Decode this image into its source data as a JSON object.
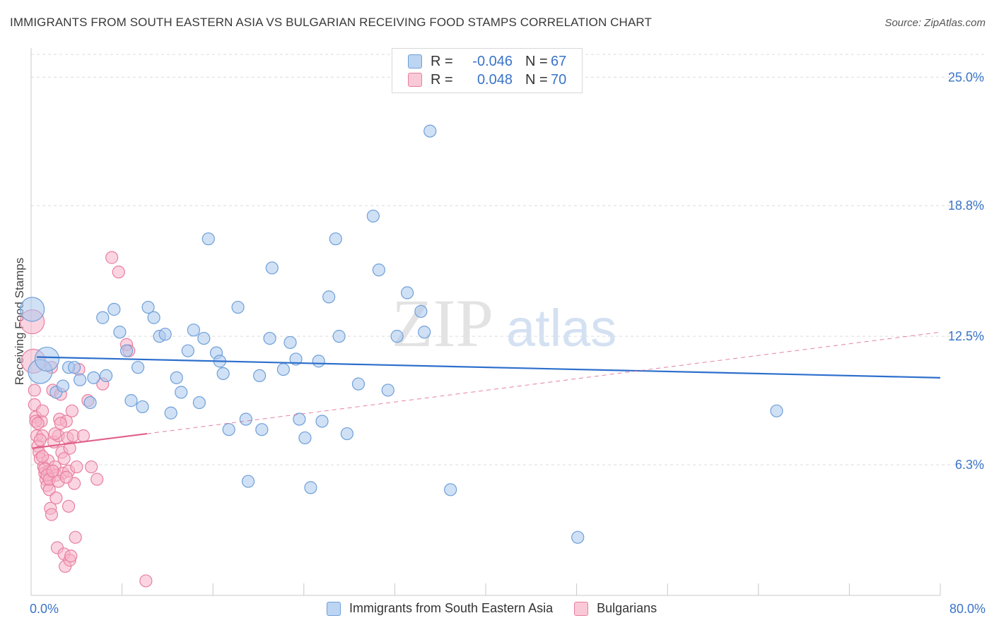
{
  "header": {
    "title": "IMMIGRANTS FROM SOUTH EASTERN ASIA VS BULGARIAN RECEIVING FOOD STAMPS CORRELATION CHART",
    "source": "Source: ZipAtlas.com"
  },
  "watermark": {
    "zip": "ZIP",
    "atlas": "atlas"
  },
  "legend_top": {
    "rows": [
      {
        "r_label": "R =",
        "r_value": "-0.046",
        "n_label": "N =",
        "n_value": "67"
      },
      {
        "r_label": "R =",
        "r_value": "0.048",
        "n_label": "N =",
        "n_value": "70"
      }
    ]
  },
  "colors": {
    "blue_fill": "#a9c8ef",
    "blue_stroke": "#6f9fd8",
    "blue_line": "#2d6fcc",
    "pink_fill": "#f5b3c8",
    "pink_stroke": "#e87fa0",
    "pink_line": "#e0608a",
    "tick_text": "#3a74c8",
    "grid": "#dcdcdc"
  },
  "chart_data": {
    "type": "scatter",
    "title": "IMMIGRANTS FROM SOUTH EASTERN ASIA VS BULGARIAN RECEIVING FOOD STAMPS CORRELATION CHART",
    "xlabel": "",
    "ylabel": "Receiving Food Stamps",
    "xlim": [
      0,
      80
    ],
    "ylim": [
      0,
      26.1
    ],
    "x_tick_labels": [
      "0.0%",
      "80.0%"
    ],
    "y_ticks": [
      6.3,
      12.5,
      18.8,
      25.0
    ],
    "y_tick_labels": [
      "6.3%",
      "12.5%",
      "18.8%",
      "25.0%"
    ],
    "grid": true,
    "legend_position": "bottom",
    "series": [
      {
        "name": "Immigrants from South Eastern Asia",
        "color": "blue",
        "r": -0.046,
        "n": 67,
        "trend": {
          "x": [
            0.5,
            80
          ],
          "y": [
            11.5,
            10.5
          ],
          "style": "solid"
        },
        "points": [
          [
            0.1,
            13.8,
            "large"
          ],
          [
            0.8,
            10.8,
            "large"
          ],
          [
            1.4,
            11.4,
            "large"
          ],
          [
            2.2,
            9.8
          ],
          [
            2.8,
            10.1
          ],
          [
            3.3,
            11.0
          ],
          [
            3.8,
            11.0
          ],
          [
            4.3,
            10.4
          ],
          [
            5.2,
            9.3
          ],
          [
            5.5,
            10.5
          ],
          [
            6.3,
            13.4
          ],
          [
            6.6,
            10.6
          ],
          [
            7.3,
            13.8
          ],
          [
            7.8,
            12.7
          ],
          [
            8.4,
            11.8
          ],
          [
            8.8,
            9.4
          ],
          [
            9.4,
            11.0
          ],
          [
            9.8,
            9.1
          ],
          [
            10.3,
            13.9
          ],
          [
            10.8,
            13.4
          ],
          [
            11.3,
            12.5
          ],
          [
            11.8,
            12.6
          ],
          [
            12.3,
            8.8
          ],
          [
            12.8,
            10.5
          ],
          [
            13.2,
            9.8
          ],
          [
            13.8,
            11.8
          ],
          [
            14.3,
            12.8
          ],
          [
            14.8,
            9.3
          ],
          [
            15.2,
            12.4
          ],
          [
            15.6,
            17.2
          ],
          [
            16.3,
            11.7
          ],
          [
            16.6,
            11.3
          ],
          [
            16.9,
            10.7
          ],
          [
            17.4,
            8.0
          ],
          [
            18.2,
            13.9
          ],
          [
            18.9,
            8.5
          ],
          [
            19.1,
            5.5
          ],
          [
            20.1,
            10.6
          ],
          [
            20.3,
            8.0
          ],
          [
            21.0,
            12.4
          ],
          [
            21.2,
            15.8
          ],
          [
            22.2,
            10.9
          ],
          [
            22.8,
            12.2
          ],
          [
            23.3,
            11.4
          ],
          [
            23.6,
            8.5
          ],
          [
            24.1,
            7.6
          ],
          [
            24.6,
            5.2
          ],
          [
            25.3,
            11.3
          ],
          [
            25.6,
            8.4
          ],
          [
            26.2,
            14.4
          ],
          [
            26.8,
            17.2
          ],
          [
            27.1,
            12.5
          ],
          [
            27.8,
            7.8
          ],
          [
            28.8,
            10.2
          ],
          [
            30.1,
            18.3
          ],
          [
            30.6,
            15.7
          ],
          [
            31.4,
            9.9
          ],
          [
            32.2,
            12.5
          ],
          [
            33.1,
            14.6
          ],
          [
            34.3,
            13.7
          ],
          [
            34.6,
            12.7
          ],
          [
            35.1,
            22.4
          ],
          [
            36.9,
            5.1
          ],
          [
            48.1,
            2.8
          ],
          [
            65.6,
            8.9
          ]
        ]
      },
      {
        "name": "Bulgarians",
        "color": "pink",
        "r": 0.048,
        "n": 70,
        "trend": {
          "x": [
            0.1,
            10.2
          ],
          "y": [
            7.1,
            7.8
          ],
          "style": "solid"
        },
        "trend_extended": {
          "x": [
            10.2,
            80
          ],
          "y": [
            7.8,
            12.7
          ],
          "style": "dashed"
        },
        "points": [
          [
            0.1,
            13.2,
            "large"
          ],
          [
            0.2,
            11.3,
            "large"
          ],
          [
            0.3,
            9.9
          ],
          [
            0.3,
            9.2
          ],
          [
            0.4,
            8.6
          ],
          [
            0.5,
            7.7
          ],
          [
            0.6,
            7.2
          ],
          [
            0.7,
            6.9
          ],
          [
            0.8,
            6.6
          ],
          [
            0.9,
            8.4
          ],
          [
            1.0,
            8.9
          ],
          [
            1.0,
            7.7
          ],
          [
            1.1,
            6.2
          ],
          [
            1.2,
            5.9
          ],
          [
            1.3,
            5.6
          ],
          [
            1.4,
            5.3
          ],
          [
            1.5,
            6.5
          ],
          [
            1.6,
            6.0
          ],
          [
            1.6,
            5.1
          ],
          [
            1.7,
            4.2
          ],
          [
            1.8,
            3.9
          ],
          [
            1.8,
            11.0
          ],
          [
            1.9,
            9.9
          ],
          [
            2.0,
            7.4
          ],
          [
            2.1,
            6.2
          ],
          [
            2.2,
            5.8
          ],
          [
            2.2,
            4.7
          ],
          [
            2.3,
            2.3
          ],
          [
            2.4,
            7.7
          ],
          [
            2.5,
            8.5
          ],
          [
            2.6,
            9.7
          ],
          [
            2.7,
            6.9
          ],
          [
            2.8,
            5.9
          ],
          [
            2.9,
            2.0
          ],
          [
            3.0,
            1.4
          ],
          [
            3.1,
            8.4
          ],
          [
            3.2,
            7.6
          ],
          [
            3.3,
            6.0
          ],
          [
            3.3,
            4.3
          ],
          [
            3.4,
            1.7
          ],
          [
            3.5,
            1.9
          ],
          [
            3.6,
            8.9
          ],
          [
            3.7,
            7.7
          ],
          [
            3.8,
            5.4
          ],
          [
            3.9,
            2.8
          ],
          [
            4.0,
            6.2
          ],
          [
            0.4,
            8.4
          ],
          [
            0.6,
            8.3
          ],
          [
            0.8,
            7.5
          ],
          [
            1.0,
            6.7
          ],
          [
            1.2,
            6.1
          ],
          [
            1.4,
            5.8
          ],
          [
            1.6,
            5.6
          ],
          [
            1.9,
            6.0
          ],
          [
            2.1,
            7.8
          ],
          [
            2.4,
            5.5
          ],
          [
            2.6,
            8.3
          ],
          [
            2.9,
            6.6
          ],
          [
            3.1,
            5.7
          ],
          [
            3.4,
            7.1
          ],
          [
            4.2,
            10.9
          ],
          [
            4.6,
            7.7
          ],
          [
            5.0,
            9.4
          ],
          [
            5.3,
            6.2
          ],
          [
            5.8,
            5.6
          ],
          [
            6.3,
            10.2
          ],
          [
            7.1,
            16.3
          ],
          [
            7.7,
            15.6
          ],
          [
            8.4,
            12.1
          ],
          [
            8.6,
            11.8
          ],
          [
            10.1,
            0.7
          ]
        ]
      }
    ]
  }
}
